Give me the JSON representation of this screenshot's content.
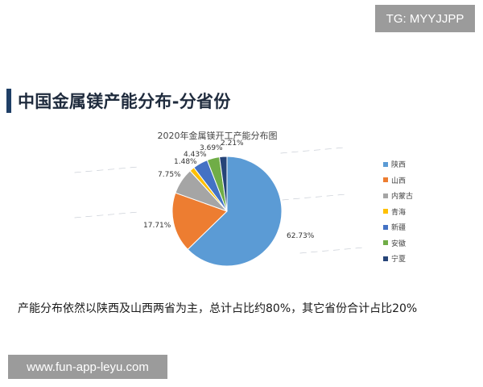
{
  "top_badge": "TG: MYYJJPP",
  "page_title": "中国金属镁产能分布-分省份",
  "watermarks": [
    "— — — — — —",
    "— — — — — —",
    "— — — — — —",
    "— — — — — —",
    "— — — — — —"
  ],
  "summary_text": "产能分布依然以陕西及山西两省为主，总计占比约80%，其它省份合计占比20%",
  "bottom_badge": "www.fun-app-leyu.com",
  "chart_data": {
    "type": "pie",
    "title": "2020年金属镁开工产能分布图",
    "categories": [
      "陕西",
      "山西",
      "内蒙古",
      "青海",
      "新疆",
      "安徽",
      "宁夏"
    ],
    "values": [
      62.73,
      17.71,
      7.75,
      1.48,
      4.43,
      3.69,
      2.21
    ],
    "labels": [
      "62.73%",
      "17.71%",
      "7.75%",
      "1.48%",
      "4.43%",
      "3.69%",
      "2.21%"
    ],
    "colors": [
      "#5b9bd5",
      "#ed7d31",
      "#a5a5a5",
      "#ffc000",
      "#4472c4",
      "#70ad47",
      "#264478"
    ],
    "legend_position": "right"
  }
}
